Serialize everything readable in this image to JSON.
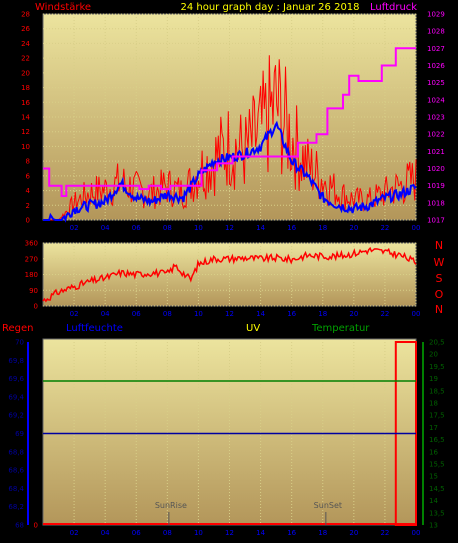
{
  "header": {
    "left": "Windstärke",
    "center": "24 hour graph day : Januar 26 2018",
    "right": "Luftdruck"
  },
  "wind_dir_letters": [
    "N",
    "W",
    "S",
    "O",
    "N"
  ],
  "bottom_labels": {
    "regen": "Regen",
    "luftfeuchte": "Luftfeuchte",
    "uv": "UV",
    "temperatur": "Temperatur"
  },
  "annotations": {
    "sunrise": "SunRise",
    "sunset": "SunSet"
  },
  "colors": {
    "plot_bg": "#e8e099",
    "plot_bg_bottom": "#b59a56",
    "wind": "#ff0000",
    "wind_avg": "#0000ff",
    "pressure": "#ff00ff",
    "rain": "#ff0000",
    "humidity": "#0000a0",
    "temperature": "#008000",
    "title": "#ffff00"
  },
  "chart_data": [
    {
      "type": "line",
      "title": "24 hour graph day : Januar 26 2018",
      "x_ticks": [
        "02",
        "04",
        "06",
        "08",
        "10",
        "12",
        "14",
        "16",
        "18",
        "20",
        "22",
        "00"
      ],
      "xlim": [
        0,
        24
      ],
      "left_axis": {
        "label": "Windstärke",
        "ticks": [
          "0",
          "2",
          "4",
          "6",
          "8",
          "10",
          "12",
          "14",
          "16",
          "18",
          "20",
          "22",
          "24",
          "26",
          "28"
        ],
        "ylim": [
          0,
          28
        ]
      },
      "right_axis": {
        "label": "Luftdruck",
        "ticks": [
          "1017",
          "1018",
          "1019",
          "1020",
          "1021",
          "1022",
          "1023",
          "1024",
          "1025",
          "1026",
          "1027",
          "1028",
          "1029"
        ],
        "ylim": [
          1017,
          1029
        ]
      },
      "series": [
        {
          "name": "",
          "axis": "left",
          "points": [
            [
              0,
              0
            ],
            [
              1,
              0
            ],
            [
              2,
              2.5
            ],
            [
              3,
              4
            ],
            [
              4,
              4.5
            ],
            [
              5,
              5.5
            ],
            [
              6,
              4.5
            ],
            [
              7,
              4
            ],
            [
              8,
              5
            ],
            [
              9,
              4
            ],
            [
              10,
              7
            ],
            [
              11,
              9
            ],
            [
              12,
              11
            ],
            [
              13,
              10
            ],
            [
              14,
              13
            ],
            [
              15,
              17
            ],
            [
              16,
              12
            ],
            [
              17,
              8
            ],
            [
              18,
              6
            ],
            [
              19,
              4
            ],
            [
              20,
              3
            ],
            [
              21,
              3
            ],
            [
              22,
              4
            ],
            [
              23,
              5
            ],
            [
              24,
              6
            ]
          ]
        },
        {
          "name": "",
          "axis": "left",
          "points": [
            [
              0,
              0
            ],
            [
              1,
              0
            ],
            [
              1.5,
              0.5
            ],
            [
              2,
              1.5
            ],
            [
              3,
              2
            ],
            [
              4,
              2.5
            ],
            [
              5,
              5
            ],
            [
              6,
              3
            ],
            [
              7,
              2.5
            ],
            [
              8,
              3.5
            ],
            [
              9,
              3
            ],
            [
              10,
              6
            ],
            [
              11,
              8
            ],
            [
              12,
              8.5
            ],
            [
              13,
              9
            ],
            [
              14,
              10
            ],
            [
              15,
              13
            ],
            [
              16,
              8
            ],
            [
              17,
              6
            ],
            [
              18,
              3
            ],
            [
              19,
              2
            ],
            [
              20,
              1.5
            ],
            [
              21,
              2
            ],
            [
              22,
              3
            ],
            [
              23,
              3.5
            ],
            [
              24,
              4.5
            ]
          ]
        },
        {
          "name": "",
          "axis": "right",
          "points": [
            [
              0,
              1020
            ],
            [
              0.4,
              1020
            ],
            [
              0.4,
              1019
            ],
            [
              1.2,
              1019
            ],
            [
              1.2,
              1018.4
            ],
            [
              1.5,
              1018.4
            ],
            [
              1.5,
              1019
            ],
            [
              6.2,
              1019
            ],
            [
              6.2,
              1018.8
            ],
            [
              6.8,
              1018.8
            ],
            [
              6.8,
              1019
            ],
            [
              7.6,
              1019
            ],
            [
              7.6,
              1018.8
            ],
            [
              8.2,
              1018.8
            ],
            [
              8.2,
              1019
            ],
            [
              10.2,
              1019
            ],
            [
              10.2,
              1019.9
            ],
            [
              11.2,
              1019.9
            ],
            [
              11.2,
              1020.3
            ],
            [
              12.2,
              1020.3
            ],
            [
              12.2,
              1020.7
            ],
            [
              16.4,
              1020.7
            ],
            [
              16.4,
              1021.5
            ],
            [
              17.6,
              1021.5
            ],
            [
              17.6,
              1022
            ],
            [
              18.3,
              1022
            ],
            [
              18.3,
              1023.5
            ],
            [
              19.3,
              1023.5
            ],
            [
              19.3,
              1024.3
            ],
            [
              19.7,
              1024.3
            ],
            [
              19.7,
              1025.4
            ],
            [
              20.3,
              1025.4
            ],
            [
              20.3,
              1025.1
            ],
            [
              21.8,
              1025.1
            ],
            [
              21.8,
              1026
            ],
            [
              22.7,
              1026
            ],
            [
              22.7,
              1027
            ],
            [
              24,
              1027
            ]
          ]
        }
      ]
    },
    {
      "type": "line",
      "x_ticks": [
        "02",
        "04",
        "06",
        "08",
        "10",
        "12",
        "14",
        "16",
        "18",
        "20",
        "22",
        "00"
      ],
      "xlim": [
        0,
        24
      ],
      "y_ticks": [
        "0",
        "90",
        "180",
        "270",
        "360"
      ],
      "ylim": [
        0,
        360
      ],
      "y_letters": [
        "N",
        "W",
        "S",
        "O",
        "N"
      ],
      "series": [
        {
          "name": "",
          "points": [
            [
              0,
              30
            ],
            [
              1,
              80
            ],
            [
              2,
              110
            ],
            [
              3,
              140
            ],
            [
              4,
              160
            ],
            [
              5,
              190
            ],
            [
              6,
              180
            ],
            [
              7,
              190
            ],
            [
              8,
              185
            ],
            [
              8.5,
              230
            ],
            [
              9.5,
              150
            ],
            [
              10,
              240
            ],
            [
              11,
              270
            ],
            [
              12,
              270
            ],
            [
              13,
              275
            ],
            [
              14,
              270
            ],
            [
              15,
              275
            ],
            [
              16,
              265
            ],
            [
              17,
              290
            ],
            [
              18,
              285
            ],
            [
              19,
              285
            ],
            [
              20,
              300
            ],
            [
              21,
              320
            ],
            [
              22,
              310
            ],
            [
              23,
              290
            ],
            [
              24,
              250
            ]
          ]
        }
      ]
    },
    {
      "type": "line",
      "x_ticks": [
        "02",
        "04",
        "06",
        "08",
        "10",
        "12",
        "14",
        "16",
        "18",
        "20",
        "22",
        "00"
      ],
      "xlim": [
        0,
        24
      ],
      "axes": {
        "regen": {
          "label": "Regen",
          "ticks": [
            "0"
          ]
        },
        "luftfeuchte": {
          "label": "Luftfeuchte",
          "ticks": [
            "68",
            "68,2",
            "68,4",
            "68,6",
            "68,8",
            "69",
            "69,2",
            "69,4",
            "69,6",
            "69,8",
            "70"
          ],
          "ylim": [
            68,
            70
          ]
        },
        "uv": {
          "label": "UV"
        },
        "temperatur": {
          "label": "Temperatur",
          "ticks": [
            "13",
            "13,5",
            "14",
            "14,5",
            "15",
            "15,5",
            "16",
            "16,5",
            "17",
            "17,5",
            "18",
            "18,5",
            "19",
            "19,5",
            "20",
            "20,5"
          ],
          "ylim": [
            13,
            20.5
          ]
        }
      },
      "series": [
        {
          "name": "",
          "axis": "luftfeuchte",
          "points": [
            [
              0,
              69
            ],
            [
              24,
              69
            ]
          ]
        },
        {
          "name": "",
          "axis": "temperatur",
          "points": [
            [
              0,
              18.9
            ],
            [
              24,
              18.9
            ]
          ]
        },
        {
          "name": "",
          "axis": "regen",
          "points": [
            [
              0,
              0
            ],
            [
              24,
              0
            ]
          ]
        }
      ],
      "rain_bar": {
        "x": [
          22.7,
          24
        ]
      },
      "annotations": [
        {
          "label": "SunRise",
          "x": 8.1
        },
        {
          "label": "SunSet",
          "x": 18.2
        }
      ]
    }
  ]
}
